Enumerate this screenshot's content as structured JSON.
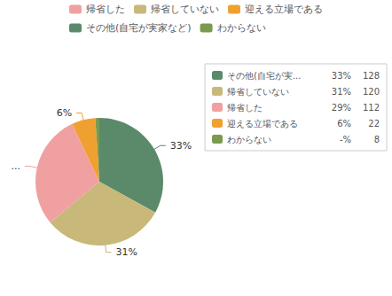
{
  "chart_data": {
    "type": "pie",
    "categories": [
      "その他(自宅が実...",
      "帰省していない",
      "帰省した",
      "迎える立場である",
      "わからない"
    ],
    "values": [
      33,
      31,
      29,
      6,
      1
    ],
    "value_labels": [
      "33%",
      "31%",
      "29%",
      "6%",
      null
    ],
    "colors": [
      "#5a8a6a",
      "#c8b87a",
      "#f0a0a0",
      "#f0a030",
      "#7a9a50"
    ],
    "legend": "top",
    "legend_items": [
      {
        "label": "帰省した",
        "color": "#f0a0a0"
      },
      {
        "label": "帰省していない",
        "color": "#c8b87a"
      },
      {
        "label": "迎える立場である",
        "color": "#f0a030"
      },
      {
        "label": "その他(自宅が実家など)",
        "color": "#5a8a6a"
      },
      {
        "label": "わからない",
        "color": "#7a9a50"
      }
    ],
    "legend_value_labels": [
      "33%",
      "31%",
      "29%",
      "6%",
      "-%"
    ],
    "counts": [
      128,
      120,
      112,
      22,
      8
    ]
  }
}
